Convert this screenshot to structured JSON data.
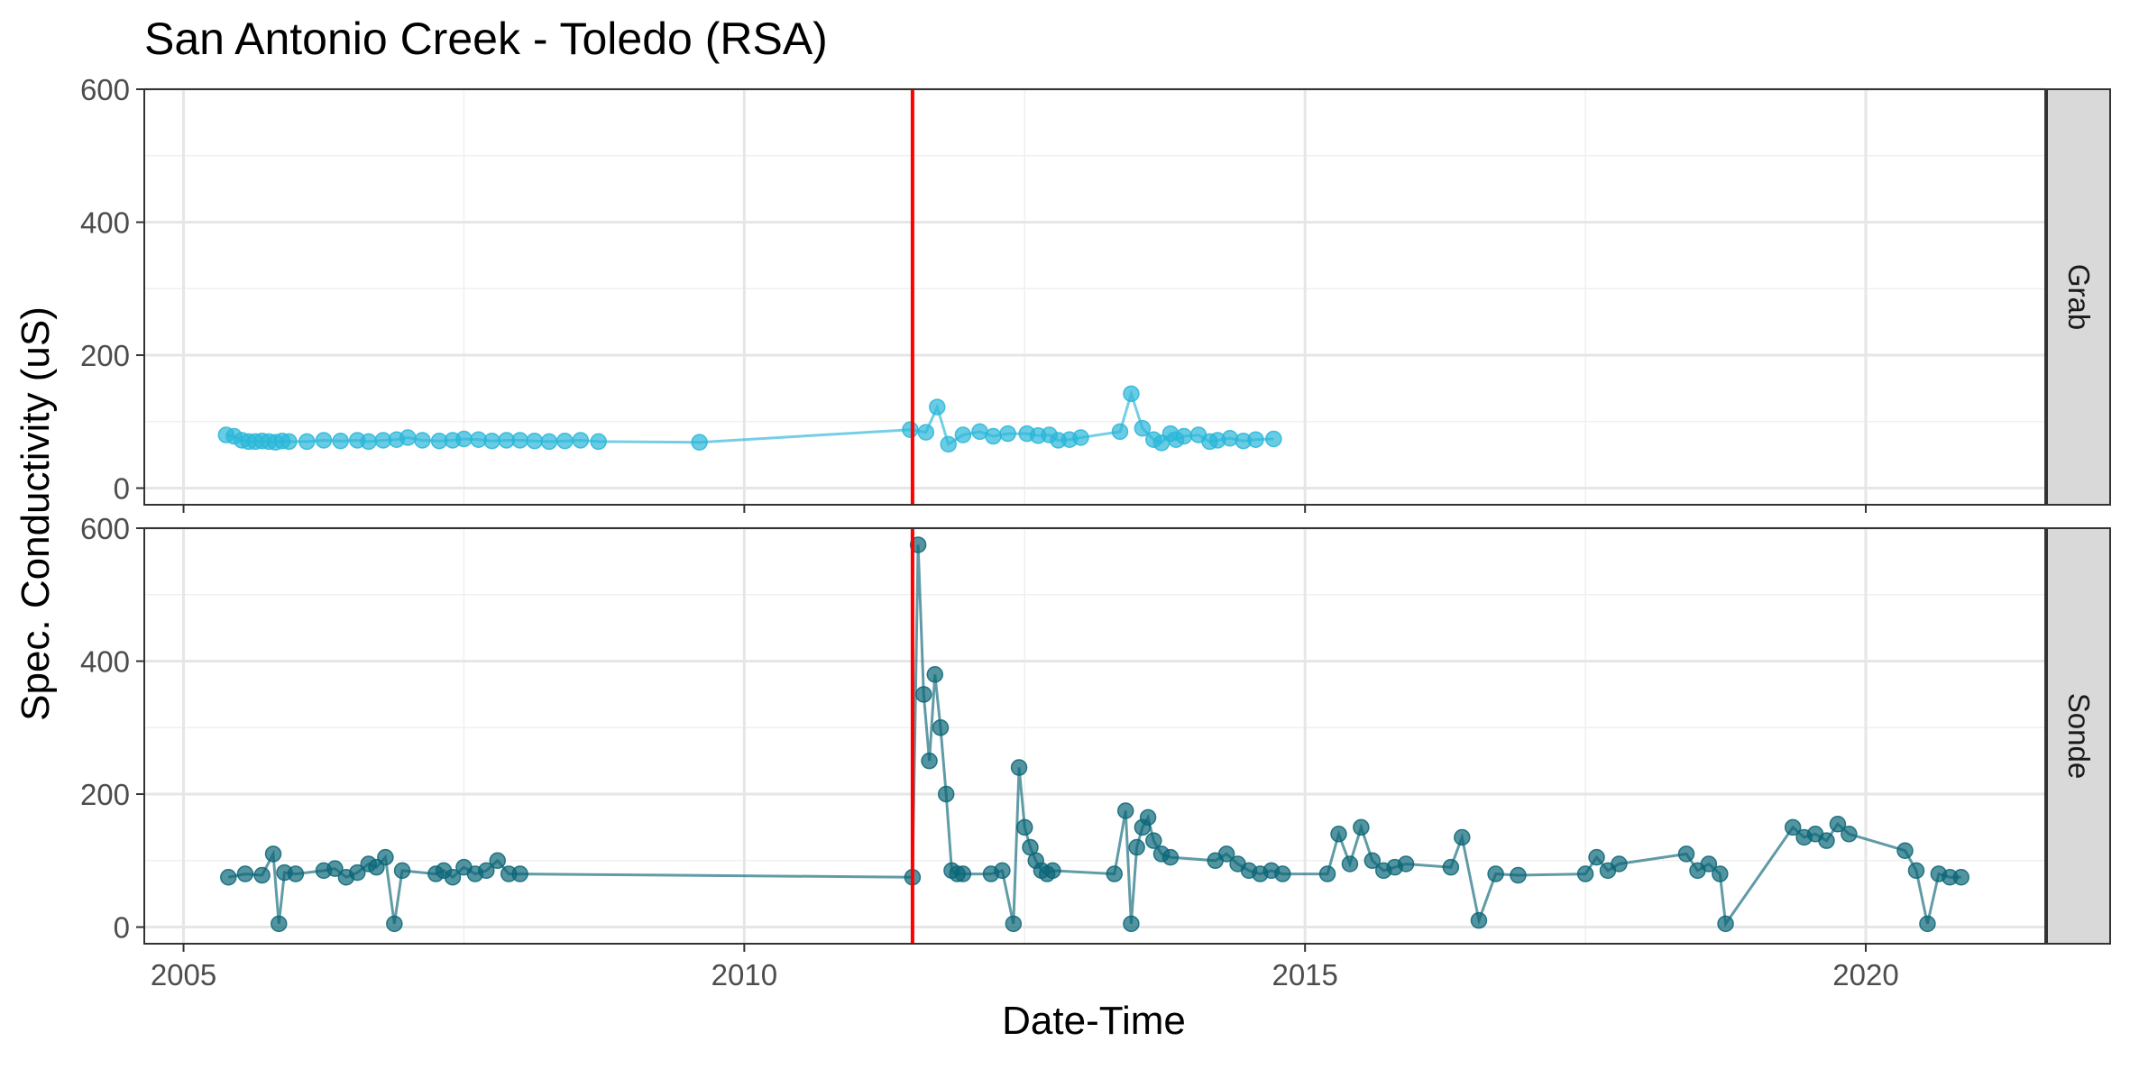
{
  "chart_data": {
    "type": "scatter",
    "title": "San Antonio Creek - Toledo (RSA)",
    "xlabel": "Date-Time",
    "ylabel": "Spec. Conductivity (uS)",
    "x_ticks": [
      "2005",
      "2010",
      "2015",
      "2020"
    ],
    "y_ticks": [
      "0",
      "200",
      "400",
      "600"
    ],
    "xlim": [
      2004.65,
      2021.6
    ],
    "ylim": [
      -25,
      600
    ],
    "vline": {
      "x": 2011.5,
      "color": "#ff0000"
    },
    "grid": true,
    "panels": [
      {
        "strip_label": "Grab",
        "color": "#29b6d8",
        "x": [
          2005.38,
          2005.45,
          2005.52,
          2005.58,
          2005.64,
          2005.7,
          2005.76,
          2005.82,
          2005.88,
          2005.94,
          2006.1,
          2006.25,
          2006.4,
          2006.55,
          2006.65,
          2006.78,
          2006.9,
          2007.0,
          2007.13,
          2007.28,
          2007.4,
          2007.5,
          2007.63,
          2007.75,
          2007.88,
          2008.0,
          2008.13,
          2008.26,
          2008.4,
          2008.54,
          2008.7,
          2009.6,
          2011.48,
          2011.62,
          2011.72,
          2011.82,
          2011.95,
          2012.1,
          2012.22,
          2012.35,
          2012.52,
          2012.62,
          2012.72,
          2012.8,
          2012.9,
          2013.0,
          2013.35,
          2013.45,
          2013.55,
          2013.65,
          2013.72,
          2013.8,
          2013.85,
          2013.92,
          2014.05,
          2014.15,
          2014.22,
          2014.33,
          2014.45,
          2014.56,
          2014.72
        ],
        "y": [
          80,
          78,
          72,
          70,
          70,
          71,
          70,
          69,
          71,
          70,
          70,
          72,
          71,
          72,
          70,
          72,
          73,
          76,
          72,
          71,
          72,
          74,
          73,
          71,
          72,
          72,
          71,
          70,
          71,
          72,
          70,
          69,
          88,
          84,
          122,
          66,
          80,
          85,
          78,
          82,
          82,
          79,
          80,
          72,
          73,
          76,
          85,
          142,
          90,
          73,
          68,
          82,
          73,
          78,
          80,
          70,
          72,
          75,
          71,
          73,
          74
        ]
      },
      {
        "strip_label": "Sonde",
        "color": "#0b6677",
        "x": [
          2005.4,
          2005.55,
          2005.7,
          2005.8,
          2005.85,
          2005.9,
          2006.0,
          2006.25,
          2006.35,
          2006.45,
          2006.55,
          2006.65,
          2006.72,
          2006.8,
          2006.88,
          2006.95,
          2007.25,
          2007.32,
          2007.4,
          2007.5,
          2007.6,
          2007.7,
          2007.8,
          2007.9,
          2008.0,
          2011.5,
          2011.55,
          2011.6,
          2011.65,
          2011.7,
          2011.75,
          2011.8,
          2011.85,
          2011.9,
          2011.95,
          2012.2,
          2012.3,
          2012.4,
          2012.45,
          2012.5,
          2012.55,
          2012.6,
          2012.65,
          2012.7,
          2012.75,
          2013.3,
          2013.4,
          2013.45,
          2013.5,
          2013.55,
          2013.6,
          2013.65,
          2013.72,
          2013.8,
          2014.2,
          2014.3,
          2014.4,
          2014.5,
          2014.6,
          2014.7,
          2014.8,
          2015.2,
          2015.3,
          2015.4,
          2015.5,
          2015.6,
          2015.7,
          2015.8,
          2015.9,
          2016.3,
          2016.4,
          2016.55,
          2016.7,
          2016.9,
          2017.5,
          2017.6,
          2017.7,
          2017.8,
          2018.4,
          2018.5,
          2018.6,
          2018.7,
          2018.75,
          2019.35,
          2019.45,
          2019.55,
          2019.65,
          2019.75,
          2019.85,
          2020.35,
          2020.45,
          2020.55,
          2020.65,
          2020.75,
          2020.85
        ],
        "y": [
          75,
          80,
          78,
          110,
          5,
          82,
          80,
          85,
          88,
          75,
          82,
          95,
          90,
          105,
          5,
          85,
          80,
          85,
          75,
          90,
          80,
          85,
          100,
          80,
          80,
          75,
          575,
          350,
          250,
          380,
          300,
          200,
          85,
          80,
          80,
          80,
          85,
          5,
          240,
          150,
          120,
          100,
          85,
          80,
          85,
          80,
          175,
          5,
          120,
          150,
          165,
          130,
          110,
          105,
          100,
          110,
          95,
          85,
          80,
          85,
          80,
          80,
          140,
          95,
          150,
          100,
          85,
          90,
          95,
          90,
          135,
          10,
          80,
          78,
          80,
          105,
          85,
          95,
          110,
          85,
          95,
          80,
          5,
          150,
          135,
          140,
          130,
          155,
          140,
          115,
          85,
          5,
          80,
          75,
          75
        ]
      }
    ]
  }
}
